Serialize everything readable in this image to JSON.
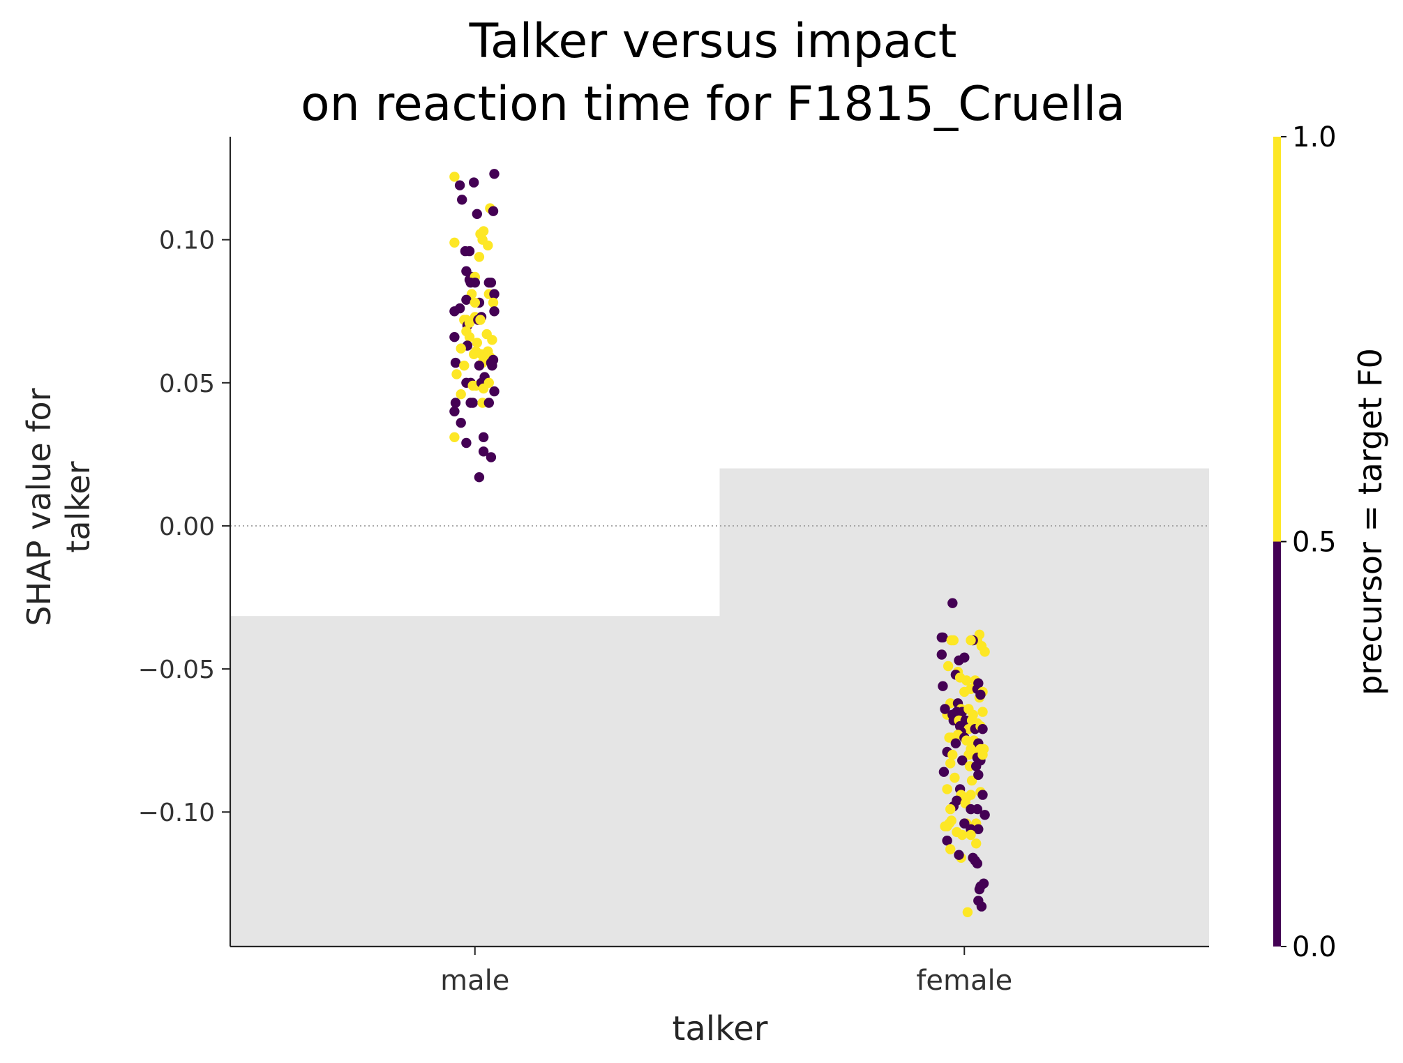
{
  "chart_data": {
    "type": "scatter",
    "title": [
      "Talker versus impact",
      "on reaction time for F1815_Cruella"
    ],
    "xlabel": "talker",
    "ylabel": [
      "SHAP value for",
      "talker"
    ],
    "categories": [
      "male",
      "female"
    ],
    "ylim": [
      -0.147,
      0.136
    ],
    "yticks": [
      {
        "value": 0.1,
        "label": "0.10"
      },
      {
        "value": 0.05,
        "label": "0.05"
      },
      {
        "value": 0.0,
        "label": "0.00"
      },
      {
        "value": -0.05,
        "label": "−0.05"
      },
      {
        "value": -0.1,
        "label": "−0.10"
      }
    ],
    "reference_line": 0.0,
    "grid": false,
    "background_steps": [
      {
        "category": "male",
        "value": -0.0315
      },
      {
        "category": "female",
        "value": 0.0201
      }
    ],
    "colorbar": {
      "label": "precursor = target F0",
      "ticks": [
        {
          "value": 0.0,
          "label": "0.0"
        },
        {
          "value": 0.5,
          "label": "0.5"
        },
        {
          "value": 1.0,
          "label": "1.0"
        }
      ],
      "segments": [
        {
          "from": 0.0,
          "to": 0.5,
          "color": "#440154"
        },
        {
          "from": 0.5,
          "to": 1.0,
          "color": "#fde725"
        }
      ]
    },
    "colors": {
      "false": "#440154",
      "true": "#fde725",
      "background": "#e5e5e5",
      "axis": "#262626"
    },
    "series": [
      {
        "category": "male",
        "points": [
          [
            -0.19,
            0.122,
            1
          ],
          [
            -0.14,
            0.119,
            0
          ],
          [
            -0.12,
            0.114,
            0
          ],
          [
            -0.01,
            0.12,
            0
          ],
          [
            0.18,
            0.123,
            0
          ],
          [
            0.14,
            0.111,
            1
          ],
          [
            0.17,
            0.11,
            0
          ],
          [
            0.02,
            0.109,
            0
          ],
          [
            0.08,
            0.103,
            1
          ],
          [
            0.05,
            0.102,
            1
          ],
          [
            -0.19,
            0.099,
            1
          ],
          [
            0.07,
            0.1,
            1
          ],
          [
            0.12,
            0.098,
            1
          ],
          [
            -0.09,
            0.096,
            0
          ],
          [
            -0.05,
            0.096,
            0
          ],
          [
            0.04,
            0.094,
            1
          ],
          [
            -0.08,
            0.089,
            0
          ],
          [
            -0.05,
            0.086,
            0
          ],
          [
            -0.03,
            0.087,
            0
          ],
          [
            0.0,
            0.087,
            1
          ],
          [
            -0.04,
            0.085,
            0
          ],
          [
            0.0,
            0.085,
            0
          ],
          [
            0.13,
            0.085,
            0
          ],
          [
            0.15,
            0.085,
            0
          ],
          [
            0.13,
            0.081,
            1
          ],
          [
            0.18,
            0.081,
            0
          ],
          [
            -0.03,
            0.081,
            1
          ],
          [
            -0.08,
            0.079,
            0
          ],
          [
            0.04,
            0.078,
            0
          ],
          [
            0.0,
            0.078,
            1
          ],
          [
            -0.19,
            0.075,
            0
          ],
          [
            -0.14,
            0.076,
            0
          ],
          [
            -0.1,
            0.072,
            1
          ],
          [
            -0.08,
            0.072,
            1
          ],
          [
            -0.07,
            0.07,
            0
          ],
          [
            -0.05,
            0.071,
            1
          ],
          [
            0.0,
            0.073,
            1
          ],
          [
            0.03,
            0.072,
            0
          ],
          [
            0.06,
            0.073,
            0
          ],
          [
            0.05,
            0.072,
            1
          ],
          [
            0.17,
            0.078,
            1
          ],
          [
            0.18,
            0.075,
            0
          ],
          [
            -0.19,
            0.066,
            0
          ],
          [
            -0.08,
            0.068,
            1
          ],
          [
            -0.05,
            0.066,
            1
          ],
          [
            0.11,
            0.067,
            1
          ],
          [
            0.16,
            0.065,
            1
          ],
          [
            -0.07,
            0.063,
            0
          ],
          [
            -0.13,
            0.062,
            1
          ],
          [
            0.02,
            0.064,
            1
          ],
          [
            0.01,
            0.061,
            1
          ],
          [
            -0.01,
            0.06,
            1
          ],
          [
            0.06,
            0.06,
            1
          ],
          [
            0.09,
            0.06,
            1
          ],
          [
            0.12,
            0.061,
            1
          ],
          [
            0.14,
            0.059,
            1
          ],
          [
            0.17,
            0.058,
            0
          ],
          [
            -0.18,
            0.057,
            0
          ],
          [
            -0.1,
            0.056,
            1
          ],
          [
            0.07,
            0.057,
            1
          ],
          [
            0.15,
            0.057,
            0
          ],
          [
            0.16,
            0.056,
            0
          ],
          [
            0.04,
            0.056,
            0
          ],
          [
            -0.17,
            0.053,
            1
          ],
          [
            0.09,
            0.052,
            0
          ],
          [
            -0.08,
            0.05,
            0
          ],
          [
            -0.04,
            0.05,
            0
          ],
          [
            -0.02,
            0.049,
            1
          ],
          [
            0.01,
            0.049,
            1
          ],
          [
            0.06,
            0.05,
            0
          ],
          [
            0.13,
            0.05,
            1
          ],
          [
            0.08,
            0.048,
            1
          ],
          [
            0.18,
            0.047,
            0
          ],
          [
            -0.13,
            0.046,
            1
          ],
          [
            -0.18,
            0.043,
            0
          ],
          [
            -0.04,
            0.043,
            0
          ],
          [
            -0.02,
            0.043,
            0
          ],
          [
            0.07,
            0.043,
            1
          ],
          [
            0.13,
            0.043,
            0
          ],
          [
            -0.19,
            0.04,
            0
          ],
          [
            -0.13,
            0.036,
            0
          ],
          [
            -0.19,
            0.031,
            1
          ],
          [
            0.08,
            0.031,
            0
          ],
          [
            -0.08,
            0.029,
            0
          ],
          [
            0.08,
            0.026,
            0
          ],
          [
            0.15,
            0.024,
            0
          ],
          [
            0.04,
            0.017,
            0
          ]
        ]
      },
      {
        "category": "female",
        "points": [
          [
            -0.11,
            -0.027,
            0
          ],
          [
            0.14,
            -0.038,
            1
          ],
          [
            0.12,
            -0.04,
            1
          ],
          [
            -0.2,
            -0.039,
            0
          ],
          [
            -0.21,
            -0.039,
            0
          ],
          [
            -0.12,
            -0.04,
            1
          ],
          [
            -0.1,
            -0.04,
            1
          ],
          [
            0.08,
            -0.04,
            0
          ],
          [
            0.06,
            -0.04,
            1
          ],
          [
            0.19,
            -0.044,
            1
          ],
          [
            0.16,
            -0.042,
            1
          ],
          [
            -0.21,
            -0.045,
            0
          ],
          [
            0.0,
            -0.046,
            0
          ],
          [
            -0.05,
            -0.047,
            0
          ],
          [
            -0.15,
            -0.049,
            1
          ],
          [
            -0.06,
            -0.051,
            1
          ],
          [
            -0.08,
            -0.052,
            0
          ],
          [
            0.02,
            -0.054,
            1
          ],
          [
            0.1,
            -0.054,
            1
          ],
          [
            0.13,
            -0.055,
            0
          ],
          [
            -0.04,
            -0.053,
            1
          ],
          [
            0.06,
            -0.057,
            1
          ],
          [
            0.12,
            -0.057,
            0
          ],
          [
            0.17,
            -0.058,
            1
          ],
          [
            0.14,
            -0.06,
            1
          ],
          [
            -0.2,
            -0.056,
            0
          ],
          [
            0.0,
            -0.058,
            1
          ],
          [
            0.15,
            -0.059,
            0
          ],
          [
            -0.13,
            -0.062,
            1
          ],
          [
            -0.06,
            -0.062,
            0
          ],
          [
            -0.03,
            -0.064,
            1
          ],
          [
            -0.07,
            -0.065,
            0
          ],
          [
            -0.02,
            -0.065,
            0
          ],
          [
            0.04,
            -0.064,
            1
          ],
          [
            0.08,
            -0.066,
            1
          ],
          [
            -0.16,
            -0.066,
            1
          ],
          [
            -0.18,
            -0.064,
            0
          ],
          [
            -0.11,
            -0.066,
            0
          ],
          [
            -0.1,
            -0.068,
            0
          ],
          [
            -0.05,
            -0.068,
            1
          ],
          [
            0.01,
            -0.068,
            0
          ],
          [
            0.07,
            -0.068,
            1
          ],
          [
            0.12,
            -0.069,
            1
          ],
          [
            0.17,
            -0.065,
            1
          ],
          [
            -0.04,
            -0.07,
            0
          ],
          [
            0.04,
            -0.071,
            1
          ],
          [
            0.1,
            -0.071,
            0
          ],
          [
            0.15,
            -0.07,
            1
          ],
          [
            0.17,
            -0.071,
            0
          ],
          [
            -0.03,
            -0.072,
            0
          ],
          [
            -0.14,
            -0.074,
            1
          ],
          [
            -0.12,
            -0.074,
            1
          ],
          [
            -0.06,
            -0.073,
            1
          ],
          [
            0.0,
            -0.074,
            0
          ],
          [
            0.02,
            -0.075,
            1
          ],
          [
            0.09,
            -0.075,
            1
          ],
          [
            0.13,
            -0.076,
            0
          ],
          [
            -0.08,
            -0.076,
            0
          ],
          [
            0.06,
            -0.078,
            1
          ],
          [
            0.15,
            -0.078,
            1
          ],
          [
            0.18,
            -0.078,
            1
          ],
          [
            -0.16,
            -0.079,
            0
          ],
          [
            -0.11,
            -0.08,
            1
          ],
          [
            0.04,
            -0.08,
            1
          ],
          [
            0.1,
            -0.08,
            1
          ],
          [
            0.12,
            -0.081,
            0
          ],
          [
            0.15,
            -0.082,
            0
          ],
          [
            0.17,
            -0.08,
            1
          ],
          [
            -0.02,
            -0.082,
            0
          ],
          [
            -0.13,
            -0.083,
            1
          ],
          [
            0.05,
            -0.084,
            1
          ],
          [
            0.11,
            -0.084,
            0
          ],
          [
            -0.19,
            -0.086,
            0
          ],
          [
            -0.09,
            -0.088,
            1
          ],
          [
            0.07,
            -0.089,
            1
          ],
          [
            0.13,
            -0.087,
            0
          ],
          [
            -0.16,
            -0.092,
            1
          ],
          [
            -0.04,
            -0.092,
            0
          ],
          [
            0.06,
            -0.094,
            1
          ],
          [
            0.15,
            -0.093,
            1
          ],
          [
            0.17,
            -0.094,
            0
          ],
          [
            -0.03,
            -0.094,
            1
          ],
          [
            -0.07,
            -0.096,
            0
          ],
          [
            0.02,
            -0.095,
            1
          ],
          [
            0.01,
            -0.097,
            1
          ],
          [
            -0.1,
            -0.098,
            0
          ],
          [
            -0.13,
            -0.099,
            1
          ],
          [
            0.12,
            -0.099,
            0
          ],
          [
            0.06,
            -0.099,
            0
          ],
          [
            0.19,
            -0.101,
            0
          ],
          [
            -0.18,
            -0.105,
            1
          ],
          [
            -0.16,
            -0.105,
            1
          ],
          [
            -0.14,
            -0.104,
            1
          ],
          [
            -0.12,
            -0.103,
            1
          ],
          [
            0.02,
            -0.104,
            1
          ],
          [
            0.0,
            -0.104,
            0
          ],
          [
            0.11,
            -0.104,
            1
          ],
          [
            -0.07,
            -0.107,
            1
          ],
          [
            -0.02,
            -0.108,
            1
          ],
          [
            0.06,
            -0.106,
            0
          ],
          [
            0.13,
            -0.106,
            0
          ],
          [
            -0.16,
            -0.11,
            0
          ],
          [
            0.06,
            -0.108,
            1
          ],
          [
            0.11,
            -0.111,
            1
          ],
          [
            -0.13,
            -0.113,
            1
          ],
          [
            -0.03,
            -0.116,
            1
          ],
          [
            -0.05,
            -0.115,
            0
          ],
          [
            0.08,
            -0.116,
            0
          ],
          [
            0.1,
            -0.117,
            0
          ],
          [
            0.12,
            -0.118,
            0
          ],
          [
            0.15,
            -0.126,
            0
          ],
          [
            0.18,
            -0.125,
            0
          ],
          [
            0.14,
            -0.127,
            0
          ],
          [
            0.13,
            -0.131,
            0
          ],
          [
            0.16,
            -0.133,
            0
          ],
          [
            0.03,
            -0.135,
            1
          ]
        ]
      }
    ]
  }
}
